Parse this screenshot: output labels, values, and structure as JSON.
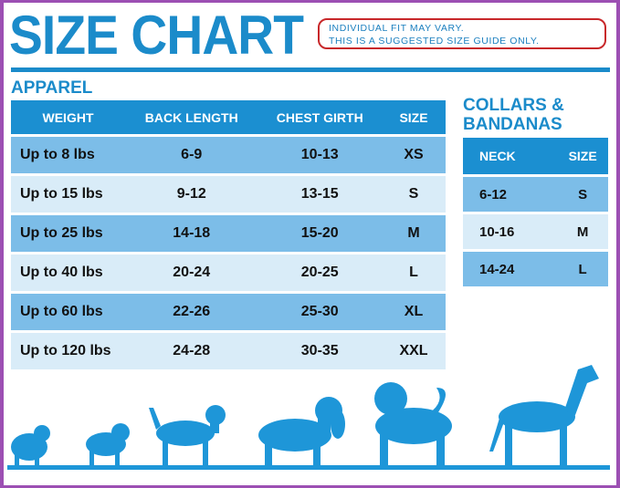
{
  "title": "SIZE CHART",
  "note": [
    "INDIVIDUAL FIT MAY VARY.",
    "THIS IS A SUGGESTED SIZE GUIDE ONLY."
  ],
  "apparel": {
    "heading": "APPAREL",
    "headers": [
      "WEIGHT",
      "BACK LENGTH",
      "CHEST GIRTH",
      "SIZE"
    ],
    "rows": [
      [
        "Up to 8 lbs",
        "6-9",
        "10-13",
        "XS"
      ],
      [
        "Up to 15 lbs",
        "9-12",
        "13-15",
        "S"
      ],
      [
        "Up to 25 lbs",
        "14-18",
        "15-20",
        "M"
      ],
      [
        "Up to 40 lbs",
        "20-24",
        "20-25",
        "L"
      ],
      [
        "Up to 60 lbs",
        "22-26",
        "25-30",
        "XL"
      ],
      [
        "Up to 120 lbs",
        "24-28",
        "30-35",
        "XXL"
      ]
    ]
  },
  "collars": {
    "heading": [
      "COLLARS &",
      "BANDANAS"
    ],
    "headers": [
      "NECK",
      "SIZE"
    ],
    "rows": [
      [
        "6-12",
        "S"
      ],
      [
        "10-16",
        "M"
      ],
      [
        "14-24",
        "L"
      ]
    ]
  },
  "colors": {
    "brand_blue": "#1b8bca",
    "header_blue": "#1b8fd1",
    "row_dark": "#7cbde8",
    "row_light": "#d9ecf8",
    "note_border": "#c8282a",
    "frame": "#9c4fb3"
  }
}
